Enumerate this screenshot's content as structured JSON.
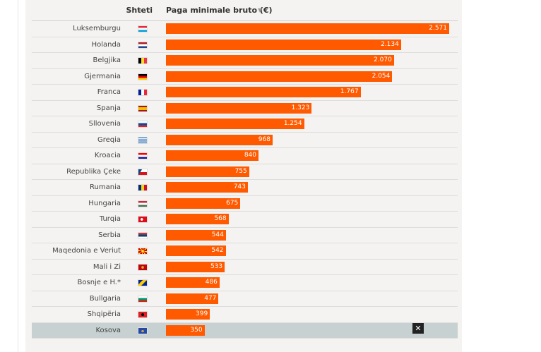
{
  "header": {
    "country_label": "Shteti",
    "flag_label": "-",
    "value_label": "Paga minimale bruto (€)",
    "sort_icon": "▼"
  },
  "colors": {
    "bar": "#ff5a00",
    "highlight_row": "#c7d1d2"
  },
  "close_label": "✕",
  "chart_data": {
    "type": "bar",
    "orientation": "horizontal",
    "title": "",
    "xlabel": "Paga minimale bruto (€)",
    "ylabel": "Shteti",
    "xlim": [
      0,
      2571
    ],
    "grid": false,
    "categories": [
      "Luksemburgu",
      "Holanda",
      "Belgjika",
      "Gjermania",
      "Franca",
      "Spanja",
      "Sllovenia",
      "Greqia",
      "Kroacia",
      "Republika Çeke",
      "Rumania",
      "Hungaria",
      "Turqia",
      "Serbia",
      "Maqedonia e Veriut",
      "Mali i Zi",
      "Bosnje e H.*",
      "Bullgaria",
      "Shqipëria",
      "Kosova"
    ],
    "values": [
      2571,
      2134,
      2070,
      2054,
      1767,
      1323,
      1254,
      968,
      840,
      755,
      743,
      675,
      568,
      544,
      542,
      533,
      486,
      477,
      399,
      350
    ],
    "value_labels": [
      "2.571",
      "2.134",
      "2.070",
      "2.054",
      "1.767",
      "1.323",
      "1.254",
      "968",
      "840",
      "755",
      "743",
      "675",
      "568",
      "544",
      "542",
      "533",
      "486",
      "477",
      "399",
      "350"
    ],
    "flag_icons": [
      "flag-luxembourg-icon",
      "flag-netherlands-icon",
      "flag-belgium-icon",
      "flag-germany-icon",
      "flag-france-icon",
      "flag-spain-icon",
      "flag-slovenia-icon",
      "flag-greece-icon",
      "flag-croatia-icon",
      "flag-czechia-icon",
      "flag-romania-icon",
      "flag-hungary-icon",
      "flag-turkey-icon",
      "flag-serbia-icon",
      "flag-north-macedonia-icon",
      "flag-montenegro-icon",
      "flag-bosnia-icon",
      "flag-bulgaria-icon",
      "flag-albania-icon",
      "flag-kosovo-icon"
    ],
    "highlighted": "Kosova"
  }
}
